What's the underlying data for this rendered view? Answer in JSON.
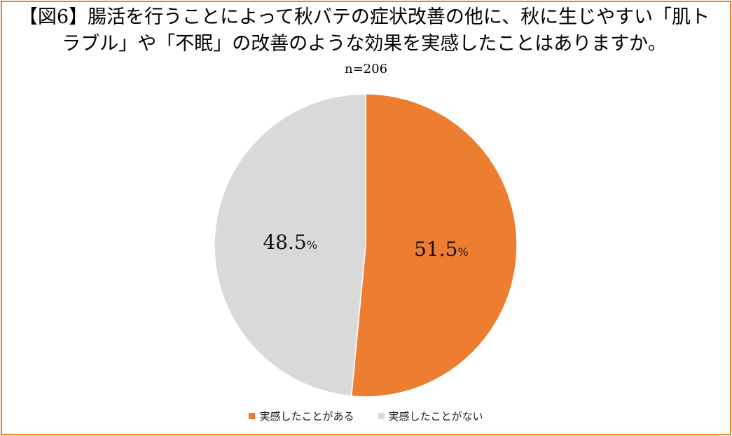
{
  "header": {
    "title_line1": "【図6】腸活を行うことによって秋バテの症状改善の他に、秋に生じやすい「肌ト",
    "title_line2": "ラブル」や「不眠」の改善のような効果を実感したことはありますか。",
    "sample_size": "n=206"
  },
  "colors": {
    "accent": "#ED7D31",
    "secondary": "#D9D9D9",
    "frame": "#ED7D31"
  },
  "chart_data": {
    "type": "pie",
    "title": "【図6】腸活を行うことによって秋バテの症状改善の他に、秋に生じやすい「肌トラブル」や「不眠」の改善のような効果を実感したことはありますか。",
    "subtitle": "n=206",
    "categories": [
      "実感したことがある",
      "実感したことがない"
    ],
    "values": [
      51.5,
      48.5
    ],
    "value_labels": [
      "51.5",
      "48.5"
    ],
    "unit": "%",
    "colors": [
      "#ED7D31",
      "#D9D9D9"
    ],
    "legend_position": "bottom",
    "start_angle": "12 o'clock, clockwise"
  }
}
